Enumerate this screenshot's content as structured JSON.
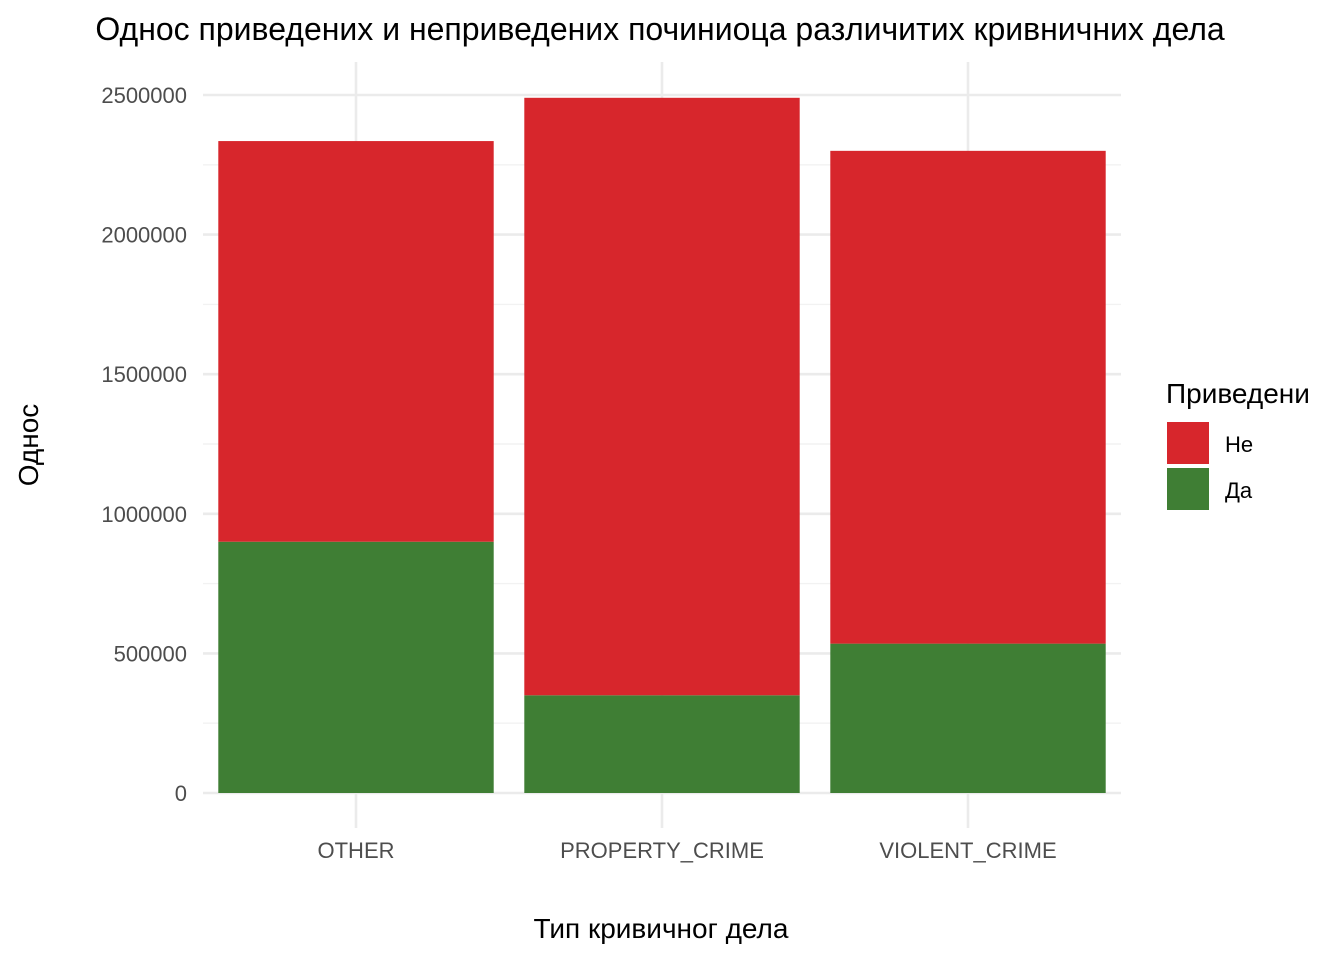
{
  "chart_data": {
    "type": "bar",
    "stacked": true,
    "title": "Однос приведених и неприведених починиоца различитих кривничних дела",
    "xlabel": "Тип кривичног дела",
    "ylabel": "Однос",
    "categories": [
      "OTHER",
      "PROPERTY_CRIME",
      "VIOLENT_CRIME"
    ],
    "series": [
      {
        "name": "Да",
        "color": "#3f7e34",
        "values": [
          900000,
          350000,
          535000
        ]
      },
      {
        "name": "Не",
        "color": "#d7262c",
        "values": [
          1435000,
          2140000,
          1765000
        ]
      }
    ],
    "ylim": [
      0,
      2500000
    ],
    "yticks": [
      0,
      500000,
      1000000,
      1500000,
      2000000,
      2500000
    ],
    "ytick_labels": [
      "0",
      "500000",
      "1000000",
      "1500000",
      "2000000",
      "2500000"
    ],
    "grid": true,
    "legend": {
      "title": "Приведени",
      "placement": "right",
      "order": [
        "Не",
        "Да"
      ]
    }
  }
}
